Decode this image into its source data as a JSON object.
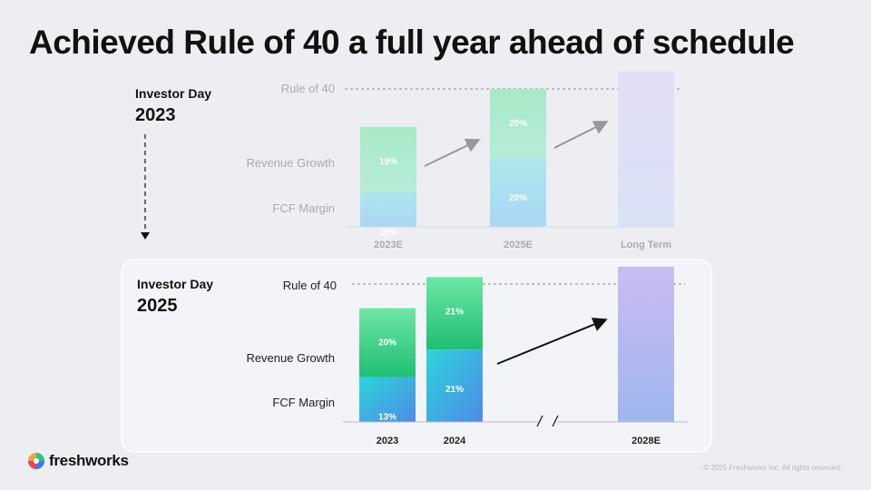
{
  "title": "Achieved Rule of 40 a full year ahead of schedule",
  "colors": {
    "fcf_2023": "#4fd4d9",
    "growth_2023": "#3ccf83",
    "accent_purple": "#c2b8ee",
    "rule_line": "#888888"
  },
  "chart_data": [
    {
      "type": "bar",
      "stacked": true,
      "faded": true,
      "heading_line1": "Investor Day",
      "heading_line2": "2023",
      "rule_label": "Rule of 40",
      "row_labels": [
        "Revenue Growth",
        "FCF Margin"
      ],
      "categories": [
        "2023E",
        "2025E",
        "Long Term"
      ],
      "series": [
        {
          "name": "FCF Margin",
          "values": [
            10,
            20,
            null
          ],
          "labels": [
            "10%",
            "20%",
            ""
          ]
        },
        {
          "name": "Revenue Growth",
          "values": [
            19,
            20,
            null
          ],
          "labels": [
            "19%",
            "20%",
            ""
          ]
        }
      ],
      "target": {
        "category": "Long Term",
        "value": 45
      },
      "rule_value": 40,
      "ylim": [
        0,
        45
      ]
    },
    {
      "type": "bar",
      "stacked": true,
      "faded": false,
      "heading_line1": "Investor Day",
      "heading_line2": "2025",
      "rule_label": "Rule of 40",
      "row_labels": [
        "Revenue Growth",
        "FCF Margin"
      ],
      "categories": [
        "2023",
        "2024",
        "",
        "2028E"
      ],
      "series": [
        {
          "name": "FCF Margin",
          "values": [
            13,
            21,
            null,
            null
          ],
          "labels": [
            "13%",
            "21%",
            "",
            ""
          ]
        },
        {
          "name": "Revenue Growth",
          "values": [
            20,
            21,
            null,
            null
          ],
          "labels": [
            "20%",
            "21%",
            "",
            ""
          ]
        }
      ],
      "target": {
        "category": "2028E",
        "value": 45
      },
      "rule_value": 40,
      "ylim": [
        0,
        45
      ]
    }
  ],
  "footer": {
    "brand": "freshworks",
    "copyright": "© 2025 Freshworks Inc. All rights reserved."
  }
}
